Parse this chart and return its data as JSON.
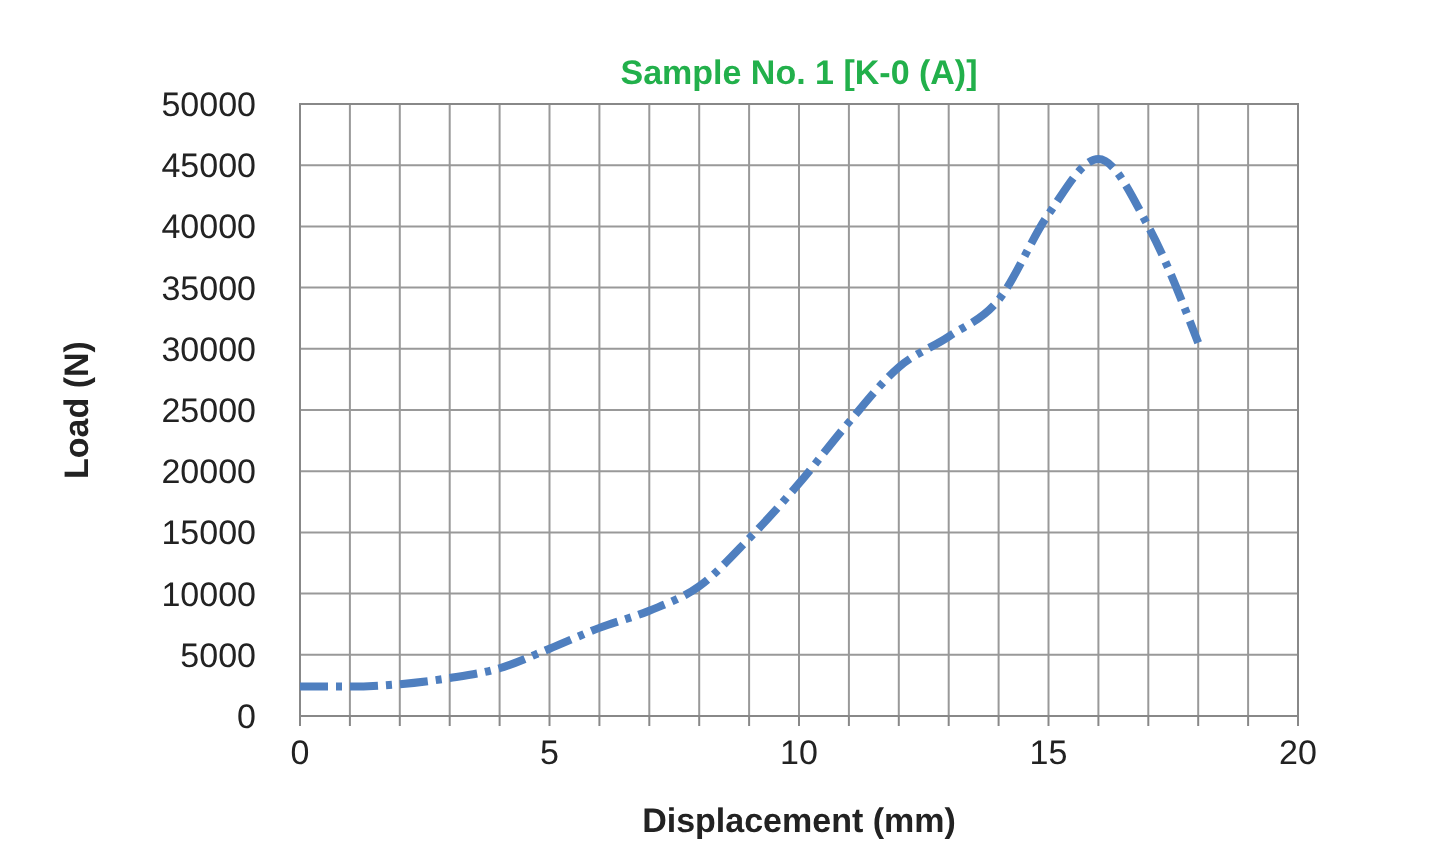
{
  "chart_data": {
    "type": "line",
    "title": "Sample No. 1 [K-0 (A)]",
    "xlabel": "Displacement (mm)",
    "ylabel": "Load (N)",
    "series": [
      {
        "color": "#4f7fbf",
        "x": [
          0,
          1,
          2,
          3,
          4,
          5,
          6,
          7,
          8,
          9,
          10,
          11,
          12,
          13,
          14,
          15,
          16,
          17,
          18
        ],
        "values": [
          2400,
          2400,
          2600,
          3100,
          3900,
          5500,
          7200,
          8600,
          10600,
          14500,
          19000,
          24000,
          28500,
          31000,
          34000,
          41000,
          45500,
          40000,
          30500
        ]
      }
    ],
    "xlim": [
      0,
      20
    ],
    "xticks": [
      0,
      {
        "value": 1,
        "label": null
      },
      {
        "value": 2,
        "label": null
      },
      {
        "value": 3,
        "label": null
      },
      {
        "value": 4,
        "label": null
      },
      5,
      {
        "value": 6,
        "label": null
      },
      {
        "value": 7,
        "label": null
      },
      {
        "value": 8,
        "label": null
      },
      {
        "value": 9,
        "label": null
      },
      10,
      {
        "value": 11,
        "label": null
      },
      {
        "value": 12,
        "label": null
      },
      {
        "value": 13,
        "label": null
      },
      {
        "value": 14,
        "label": null
      },
      15,
      {
        "value": 16,
        "label": null
      },
      {
        "value": 17,
        "label": null
      },
      {
        "value": 18,
        "label": null
      },
      {
        "value": 19,
        "label": null
      },
      20
    ],
    "ylim": [
      0,
      50000
    ],
    "yticks": [
      0,
      5000,
      10000,
      15000,
      20000,
      25000,
      30000,
      35000,
      40000,
      45000,
      50000
    ],
    "grid": true,
    "line_style": "dashed"
  }
}
